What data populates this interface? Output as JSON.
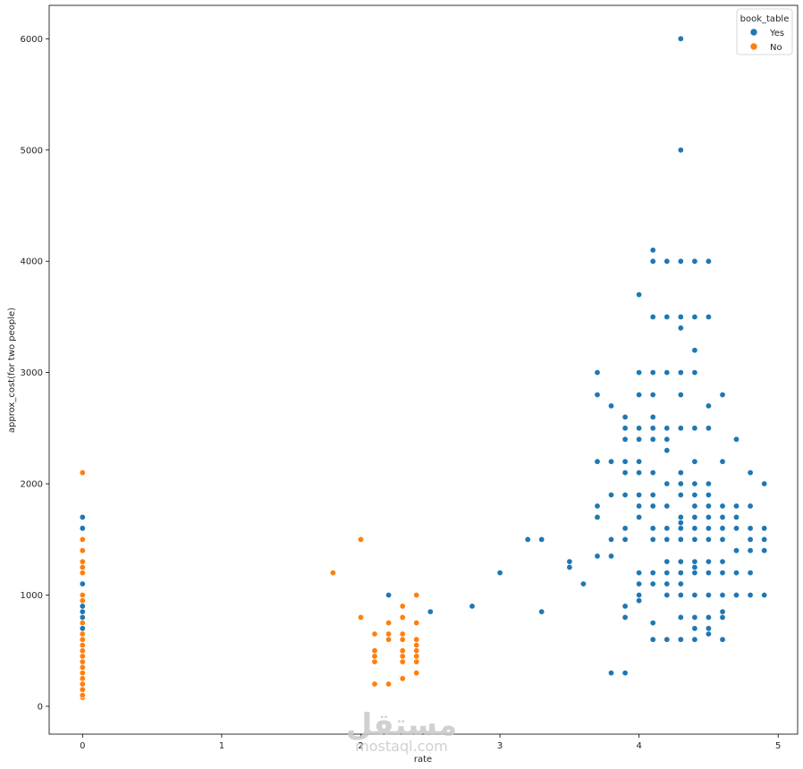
{
  "chart_data": {
    "type": "scatter",
    "title": "",
    "xlabel": "rate",
    "ylabel": "approx_cost(for two people)",
    "xlim": [
      -0.24,
      5.14
    ],
    "ylim": [
      -250,
      6300
    ],
    "xticks": [
      0,
      1,
      2,
      3,
      4,
      5
    ],
    "yticks": [
      0,
      1000,
      2000,
      3000,
      4000,
      5000,
      6000
    ],
    "grid": false,
    "legend": {
      "title": "book_table",
      "placement": "top-right"
    },
    "series": [
      {
        "name": "Yes",
        "color": "#1f77b4",
        "points": [
          [
            0,
            700
          ],
          [
            0,
            800
          ],
          [
            0,
            850
          ],
          [
            0,
            900
          ],
          [
            0,
            1100
          ],
          [
            0,
            1600
          ],
          [
            0,
            1700
          ],
          [
            2.2,
            1000
          ],
          [
            2.5,
            850
          ],
          [
            2.8,
            900
          ],
          [
            3.0,
            1200
          ],
          [
            3.2,
            1500
          ],
          [
            3.3,
            1500
          ],
          [
            3.3,
            850
          ],
          [
            3.5,
            1250
          ],
          [
            3.5,
            1300
          ],
          [
            3.6,
            1100
          ],
          [
            3.7,
            1350
          ],
          [
            3.7,
            1700
          ],
          [
            3.7,
            1800
          ],
          [
            3.7,
            2200
          ],
          [
            3.7,
            2800
          ],
          [
            3.7,
            3000
          ],
          [
            3.8,
            1350
          ],
          [
            3.8,
            1500
          ],
          [
            3.8,
            1900
          ],
          [
            3.8,
            2200
          ],
          [
            3.8,
            2700
          ],
          [
            3.9,
            1500
          ],
          [
            3.9,
            1600
          ],
          [
            3.9,
            1900
          ],
          [
            3.9,
            2100
          ],
          [
            3.9,
            2200
          ],
          [
            3.9,
            2400
          ],
          [
            3.9,
            2500
          ],
          [
            3.9,
            2600
          ],
          [
            3.9,
            300
          ],
          [
            3.9,
            800
          ],
          [
            3.9,
            900
          ],
          [
            3.8,
            300
          ],
          [
            4.0,
            1100
          ],
          [
            4.0,
            1200
          ],
          [
            4.0,
            1700
          ],
          [
            4.0,
            1800
          ],
          [
            4.0,
            1900
          ],
          [
            4.0,
            2100
          ],
          [
            4.0,
            2200
          ],
          [
            4.0,
            2400
          ],
          [
            4.0,
            2500
          ],
          [
            4.0,
            2800
          ],
          [
            4.0,
            3000
          ],
          [
            4.0,
            3700
          ],
          [
            4.0,
            1000
          ],
          [
            4.0,
            950
          ],
          [
            4.1,
            600
          ],
          [
            4.1,
            750
          ],
          [
            4.1,
            1100
          ],
          [
            4.1,
            1200
          ],
          [
            4.1,
            1500
          ],
          [
            4.1,
            1600
          ],
          [
            4.1,
            1800
          ],
          [
            4.1,
            1900
          ],
          [
            4.1,
            2100
          ],
          [
            4.1,
            2400
          ],
          [
            4.1,
            2500
          ],
          [
            4.1,
            2600
          ],
          [
            4.1,
            2800
          ],
          [
            4.1,
            3000
          ],
          [
            4.1,
            3500
          ],
          [
            4.1,
            4000
          ],
          [
            4.1,
            4100
          ],
          [
            4.2,
            600
          ],
          [
            4.2,
            1000
          ],
          [
            4.2,
            1100
          ],
          [
            4.2,
            1200
          ],
          [
            4.2,
            1300
          ],
          [
            4.2,
            1500
          ],
          [
            4.2,
            1600
          ],
          [
            4.2,
            1800
          ],
          [
            4.2,
            2000
          ],
          [
            4.2,
            2300
          ],
          [
            4.2,
            2400
          ],
          [
            4.2,
            2500
          ],
          [
            4.2,
            3000
          ],
          [
            4.2,
            3500
          ],
          [
            4.2,
            4000
          ],
          [
            4.3,
            600
          ],
          [
            4.3,
            800
          ],
          [
            4.3,
            1000
          ],
          [
            4.3,
            1100
          ],
          [
            4.3,
            1200
          ],
          [
            4.3,
            1300
          ],
          [
            4.3,
            1500
          ],
          [
            4.3,
            1600
          ],
          [
            4.3,
            1650
          ],
          [
            4.3,
            1700
          ],
          [
            4.3,
            1900
          ],
          [
            4.3,
            2000
          ],
          [
            4.3,
            2100
          ],
          [
            4.3,
            2500
          ],
          [
            4.3,
            2800
          ],
          [
            4.3,
            3000
          ],
          [
            4.3,
            3400
          ],
          [
            4.3,
            3500
          ],
          [
            4.3,
            4000
          ],
          [
            4.3,
            5000
          ],
          [
            4.3,
            6000
          ],
          [
            4.4,
            600
          ],
          [
            4.4,
            700
          ],
          [
            4.4,
            800
          ],
          [
            4.4,
            1000
          ],
          [
            4.4,
            1200
          ],
          [
            4.4,
            1250
          ],
          [
            4.4,
            1300
          ],
          [
            4.4,
            1500
          ],
          [
            4.4,
            1600
          ],
          [
            4.4,
            1700
          ],
          [
            4.4,
            1800
          ],
          [
            4.4,
            1900
          ],
          [
            4.4,
            2000
          ],
          [
            4.4,
            2200
          ],
          [
            4.4,
            2500
          ],
          [
            4.4,
            3000
          ],
          [
            4.4,
            3200
          ],
          [
            4.4,
            3500
          ],
          [
            4.4,
            4000
          ],
          [
            4.5,
            650
          ],
          [
            4.5,
            700
          ],
          [
            4.5,
            800
          ],
          [
            4.5,
            1000
          ],
          [
            4.5,
            1200
          ],
          [
            4.5,
            1300
          ],
          [
            4.5,
            1500
          ],
          [
            4.5,
            1600
          ],
          [
            4.5,
            1700
          ],
          [
            4.5,
            1800
          ],
          [
            4.5,
            1900
          ],
          [
            4.5,
            2000
          ],
          [
            4.5,
            2500
          ],
          [
            4.5,
            2700
          ],
          [
            4.5,
            3500
          ],
          [
            4.5,
            4000
          ],
          [
            4.6,
            600
          ],
          [
            4.6,
            800
          ],
          [
            4.6,
            850
          ],
          [
            4.6,
            1000
          ],
          [
            4.6,
            1200
          ],
          [
            4.6,
            1300
          ],
          [
            4.6,
            1500
          ],
          [
            4.6,
            1600
          ],
          [
            4.6,
            1700
          ],
          [
            4.6,
            1800
          ],
          [
            4.6,
            2200
          ],
          [
            4.6,
            2800
          ],
          [
            4.7,
            1000
          ],
          [
            4.7,
            1200
          ],
          [
            4.7,
            1400
          ],
          [
            4.7,
            1600
          ],
          [
            4.7,
            1700
          ],
          [
            4.7,
            1800
          ],
          [
            4.7,
            2400
          ],
          [
            4.8,
            1000
          ],
          [
            4.8,
            1200
          ],
          [
            4.8,
            1400
          ],
          [
            4.8,
            1500
          ],
          [
            4.8,
            1600
          ],
          [
            4.8,
            1800
          ],
          [
            4.8,
            2100
          ],
          [
            4.9,
            1000
          ],
          [
            4.9,
            1400
          ],
          [
            4.9,
            1500
          ],
          [
            4.9,
            1600
          ],
          [
            4.9,
            2000
          ]
        ]
      },
      {
        "name": "No",
        "color": "#ff7f0e",
        "points": [
          [
            0,
            80
          ],
          [
            0,
            100
          ],
          [
            0,
            150
          ],
          [
            0,
            200
          ],
          [
            0,
            250
          ],
          [
            0,
            300
          ],
          [
            0,
            350
          ],
          [
            0,
            400
          ],
          [
            0,
            450
          ],
          [
            0,
            500
          ],
          [
            0,
            550
          ],
          [
            0,
            600
          ],
          [
            0,
            650
          ],
          [
            0,
            750
          ],
          [
            0,
            900
          ],
          [
            0,
            950
          ],
          [
            0,
            1000
          ],
          [
            0,
            1200
          ],
          [
            0,
            1250
          ],
          [
            0,
            1300
          ],
          [
            0,
            1400
          ],
          [
            0,
            1500
          ],
          [
            0,
            2100
          ],
          [
            1.8,
            1200
          ],
          [
            2.0,
            800
          ],
          [
            2.0,
            1500
          ],
          [
            2.1,
            200
          ],
          [
            2.1,
            400
          ],
          [
            2.1,
            450
          ],
          [
            2.1,
            500
          ],
          [
            2.1,
            650
          ],
          [
            2.2,
            200
          ],
          [
            2.2,
            600
          ],
          [
            2.2,
            650
          ],
          [
            2.2,
            750
          ],
          [
            2.3,
            250
          ],
          [
            2.3,
            400
          ],
          [
            2.3,
            450
          ],
          [
            2.3,
            500
          ],
          [
            2.3,
            600
          ],
          [
            2.3,
            650
          ],
          [
            2.3,
            800
          ],
          [
            2.3,
            900
          ],
          [
            2.4,
            300
          ],
          [
            2.4,
            400
          ],
          [
            2.4,
            450
          ],
          [
            2.4,
            500
          ],
          [
            2.4,
            550
          ],
          [
            2.4,
            600
          ],
          [
            2.4,
            750
          ],
          [
            2.4,
            1000
          ]
        ]
      }
    ]
  },
  "watermark": {
    "arabic": "مستقل",
    "latin": "mostaql.com"
  }
}
